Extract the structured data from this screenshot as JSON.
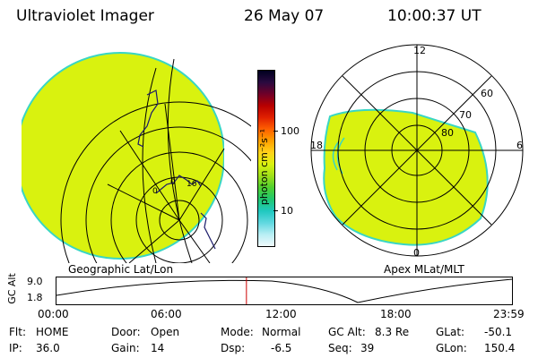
{
  "header": {
    "title": "Ultraviolet Imager",
    "date": "26 May 07",
    "time": "10:00:37 UT"
  },
  "colors": {
    "map_fill": "#d9f20f",
    "map_edge": "#39d6c4",
    "background": "#ffffff",
    "marker": "#cc0000"
  },
  "colorbar": {
    "unit_label": "photon cm⁻²s⁻¹",
    "tick_labels": [
      "100",
      "10"
    ],
    "stops": [
      "#000020",
      "#2a0a40",
      "#700028",
      "#b80000",
      "#e02000",
      "#ff6000",
      "#ffa000",
      "#ffd21a",
      "#d9f20f",
      "#9fe01a",
      "#4fd030",
      "#20c870",
      "#20c8c0",
      "#60d8e0",
      "#b8eef4",
      "#f0fafc"
    ]
  },
  "left_panel": {
    "caption": "Geographic Lat/Lon",
    "map_labels": [
      "0",
      "0",
      "16"
    ]
  },
  "right_panel": {
    "caption": "Apex MLat/MLT",
    "mlt_labels": {
      "top": "12",
      "left": "18",
      "right": "6",
      "bottom": "0"
    },
    "mlat_labels": [
      "60",
      "70",
      "80"
    ]
  },
  "altitude_plot": {
    "ylabel": "GC Alt",
    "ytick_labels": [
      "9.0",
      "1.8"
    ],
    "xtick_labels": [
      "00:00",
      "06:00",
      "12:00",
      "18:00",
      "23:59"
    ],
    "current_time_fraction": 0.417
  },
  "info": {
    "flt_label": "Flt:",
    "flt_value": "HOME",
    "ip_label": "IP:",
    "ip_value": "36.0",
    "door_label": "Door:",
    "door_value": "Open",
    "gain_label": "Gain:",
    "gain_value": "14",
    "mode_label": "Mode:",
    "mode_value": "Normal",
    "dsp_label": "Dsp:",
    "dsp_value": "-6.5",
    "gcalt_label": "GC Alt:",
    "gcalt_value": "8.3 Re",
    "seq_label": "Seq:",
    "seq_value": "39",
    "glat_label": "GLat:",
    "glat_value": "-50.1",
    "glon_label": "GLon:",
    "glon_value": "150.4"
  }
}
